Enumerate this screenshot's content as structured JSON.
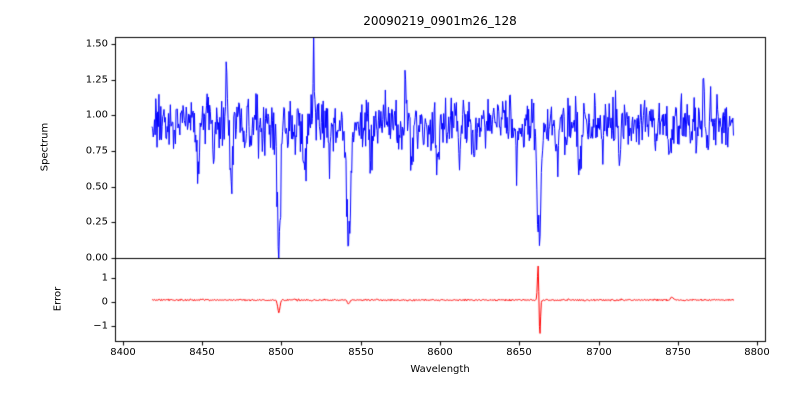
{
  "chart_data": {
    "type": "line",
    "title": "20090219_0901m26_128",
    "xlabel": "Wavelength",
    "background": "#ffffff",
    "frame_color": "#000000",
    "legend": "none",
    "grid": false,
    "seed": 20090219,
    "x_axis": {
      "lim": [
        8395,
        8805
      ],
      "data_range": [
        8418,
        8785
      ],
      "sample_step": 0.4,
      "ticks": [
        {
          "value": 8400,
          "label": "8400"
        },
        {
          "value": 8450,
          "label": "8450"
        },
        {
          "value": 8500,
          "label": "8500"
        },
        {
          "value": 8550,
          "label": "8550"
        },
        {
          "value": 8600,
          "label": "8600"
        },
        {
          "value": 8650,
          "label": "8650"
        },
        {
          "value": 8700,
          "label": "8700"
        },
        {
          "value": 8750,
          "label": "8750"
        },
        {
          "value": 8800,
          "label": "8800"
        }
      ]
    },
    "panels": [
      {
        "ylabel": "Spectrum",
        "ylim": [
          0.0,
          1.55
        ],
        "ticks": [
          {
            "value": 0.0,
            "label": "0.00"
          },
          {
            "value": 0.25,
            "label": "0.25"
          },
          {
            "value": 0.5,
            "label": "0.50"
          },
          {
            "value": 0.75,
            "label": "0.75"
          },
          {
            "value": 1.0,
            "label": "1.00"
          },
          {
            "value": 1.25,
            "label": "1.25"
          },
          {
            "value": 1.5,
            "label": "1.50"
          }
        ],
        "series": {
          "name": "spectrum",
          "color": "#0000ff",
          "baseline": 0.95,
          "noise_std": 0.09,
          "absorption_lines": [
            {
              "center": 8498.0,
              "depth": 0.83,
              "sigma": 1.0
            },
            {
              "center": 8542.1,
              "depth": 0.82,
              "sigma": 1.3
            },
            {
              "center": 8662.1,
              "depth": 0.88,
              "sigma": 1.3
            },
            {
              "center": 8447,
              "depth": 0.32,
              "sigma": 0.8
            },
            {
              "center": 8457,
              "depth": 0.2,
              "sigma": 0.6
            },
            {
              "center": 8468,
              "depth": 0.42,
              "sigma": 0.7
            },
            {
              "center": 8477,
              "depth": 0.2,
              "sigma": 0.6
            },
            {
              "center": 8514,
              "depth": 0.35,
              "sigma": 0.9
            },
            {
              "center": 8530,
              "depth": 0.22,
              "sigma": 0.7
            },
            {
              "center": 8556,
              "depth": 0.28,
              "sigma": 0.8
            },
            {
              "center": 8582,
              "depth": 0.28,
              "sigma": 0.7
            },
            {
              "center": 8598,
              "depth": 0.3,
              "sigma": 0.8
            },
            {
              "center": 8612,
              "depth": 0.25,
              "sigma": 0.7
            },
            {
              "center": 8621,
              "depth": 0.2,
              "sigma": 0.6
            },
            {
              "center": 8648,
              "depth": 0.22,
              "sigma": 0.7
            },
            {
              "center": 8674,
              "depth": 0.3,
              "sigma": 0.7
            },
            {
              "center": 8688,
              "depth": 0.35,
              "sigma": 0.8
            },
            {
              "center": 8702,
              "depth": 0.2,
              "sigma": 0.6
            },
            {
              "center": 8713,
              "depth": 0.28,
              "sigma": 0.7
            },
            {
              "center": 8736,
              "depth": 0.2,
              "sigma": 0.6
            },
            {
              "center": 8745,
              "depth": 0.25,
              "sigma": 0.7
            },
            {
              "center": 8758,
              "depth": 0.2,
              "sigma": 0.6
            }
          ],
          "emission_spikes": [
            {
              "center": 8465,
              "amp": 0.5,
              "sigma": 0.5
            },
            {
              "center": 8520,
              "amp": 0.45,
              "sigma": 0.4
            },
            {
              "center": 8578,
              "amp": 0.42,
              "sigma": 0.5
            },
            {
              "center": 8766,
              "amp": 0.3,
              "sigma": 0.5
            }
          ]
        }
      },
      {
        "ylabel": "Error",
        "ylim": [
          -1.6,
          1.8
        ],
        "ticks": [
          {
            "value": -1,
            "label": "−1"
          },
          {
            "value": 0,
            "label": "0"
          },
          {
            "value": 1,
            "label": "1"
          }
        ],
        "series": {
          "name": "error",
          "color": "#ff0000",
          "baseline": 0.1,
          "noise_std": 0.018,
          "features": [
            {
              "center": 8498.0,
              "amp": -0.5,
              "sigma": 0.7
            },
            {
              "center": 8542.1,
              "amp": -0.15,
              "sigma": 0.7
            },
            {
              "center": 8661.6,
              "amp": 1.5,
              "sigma": 0.45
            },
            {
              "center": 8662.6,
              "amp": -1.55,
              "sigma": 0.45
            },
            {
              "center": 8746,
              "amp": 0.12,
              "sigma": 0.8
            }
          ]
        }
      }
    ]
  }
}
